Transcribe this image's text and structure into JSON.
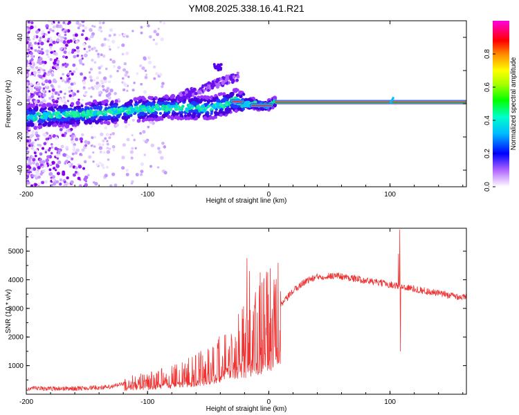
{
  "figure": {
    "title": "YM08.2025.338.16.41.R21"
  },
  "chart_data": [
    {
      "type": "heatmap",
      "name": "spectrogram",
      "xlabel": "Height of straight line (km)",
      "ylabel": "Frequency (Hz)",
      "xlim": [
        -200,
        163
      ],
      "ylim": [
        -50,
        50
      ],
      "x_ticks": [
        -200,
        -100,
        0,
        100
      ],
      "y_ticks": [
        -40,
        -20,
        0,
        20,
        40
      ],
      "colorbar": {
        "label": "Normalized spectral amplitude",
        "range": [
          0,
          1
        ],
        "ticks": [
          "0.0",
          "0.2",
          "0.4",
          "0.6",
          "0.8"
        ],
        "colormap": [
          "#ffffff",
          "#7700ff",
          "#0000ff",
          "#00bbff",
          "#00ffcc",
          "#00ff00",
          "#aaff00",
          "#ffff00",
          "#ffaa00",
          "#ff0000",
          "#ff0088",
          "#ff00dd"
        ]
      },
      "trace": [
        {
          "x": -200,
          "f": -8
        },
        {
          "x": -150,
          "f": -6
        },
        {
          "x": -100,
          "f": -3
        },
        {
          "x": -75,
          "f": -2
        },
        {
          "x": -50,
          "f": -3
        },
        {
          "x": -40,
          "f": -1
        },
        {
          "x": -28,
          "f": 2
        },
        {
          "x": -20,
          "f": 0
        },
        {
          "x": -12,
          "f": 0
        },
        {
          "x": -5,
          "f": -1
        },
        {
          "x": 0,
          "f": -1
        },
        {
          "x": 5,
          "f": 1
        },
        {
          "x": 100,
          "f": 1
        },
        {
          "x": 102,
          "f": 3
        },
        {
          "x": 163,
          "f": 1
        }
      ],
      "stable_line": {
        "x_start": 5,
        "x_end": 163,
        "f": 1
      }
    },
    {
      "type": "line",
      "name": "snr",
      "xlabel": "Height of straight line (km)",
      "ylabel": "SNR (10 * v/v)",
      "xlim": [
        -200,
        163
      ],
      "ylim": [
        0,
        5800
      ],
      "x_ticks": [
        -200,
        -100,
        0,
        100
      ],
      "y_ticks": [
        1000,
        2000,
        3000,
        4000,
        5000
      ],
      "color": "#ee3333",
      "envelope": [
        {
          "x": -200,
          "y": 200
        },
        {
          "x": -160,
          "y": 200
        },
        {
          "x": -130,
          "y": 250
        },
        {
          "x": -120,
          "y": 380
        },
        {
          "x": -100,
          "y": 500
        },
        {
          "x": -80,
          "y": 650
        },
        {
          "x": -60,
          "y": 900
        },
        {
          "x": -45,
          "y": 1200
        },
        {
          "x": -35,
          "y": 1500
        },
        {
          "x": -25,
          "y": 1700
        },
        {
          "x": -18,
          "y": 1900
        },
        {
          "x": -10,
          "y": 2200
        },
        {
          "x": 0,
          "y": 2600
        },
        {
          "x": 10,
          "y": 3100
        },
        {
          "x": 20,
          "y": 3600
        },
        {
          "x": 30,
          "y": 3950
        },
        {
          "x": 40,
          "y": 4100
        },
        {
          "x": 55,
          "y": 4150
        },
        {
          "x": 70,
          "y": 4050
        },
        {
          "x": 90,
          "y": 3900
        },
        {
          "x": 105,
          "y": 3800
        },
        {
          "x": 130,
          "y": 3600
        },
        {
          "x": 150,
          "y": 3450
        },
        {
          "x": 163,
          "y": 3380
        }
      ],
      "spikes": [
        {
          "x": -18,
          "y": 4750
        },
        {
          "x": -16,
          "y": 4300
        },
        {
          "x": -7,
          "y": 4250
        },
        {
          "x": 108,
          "y": 5750
        },
        {
          "x": 107,
          "y": 4900
        },
        {
          "x": 108.5,
          "y": 1500
        }
      ]
    }
  ]
}
